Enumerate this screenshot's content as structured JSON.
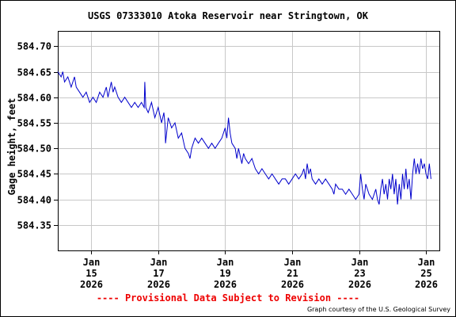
{
  "chart_data": {
    "type": "line",
    "title": "USGS 07333010 Atoka Reservoir near Stringtown, OK",
    "ylabel": "Gage height, feet",
    "xlabel": "",
    "ylim": [
      584.3,
      584.73
    ],
    "xlim": [
      -1.0,
      10.4
    ],
    "yticks": [
      "584.35",
      "584.40",
      "584.45",
      "584.50",
      "584.55",
      "584.60",
      "584.65",
      "584.70"
    ],
    "xticks": [
      {
        "pos": 0,
        "lines": [
          "Jan",
          "15",
          "2026"
        ]
      },
      {
        "pos": 2,
        "lines": [
          "Jan",
          "17",
          "2026"
        ]
      },
      {
        "pos": 4,
        "lines": [
          "Jan",
          "19",
          "2026"
        ]
      },
      {
        "pos": 6,
        "lines": [
          "Jan",
          "21",
          "2026"
        ]
      },
      {
        "pos": 8,
        "lines": [
          "Jan",
          "23",
          "2026"
        ]
      },
      {
        "pos": 10,
        "lines": [
          "Jan",
          "25",
          "2026"
        ]
      }
    ],
    "x_note": "x positions in days, 0 = Jan 15 2026",
    "grid": true,
    "series": [
      {
        "name": "",
        "color": "#0000cc",
        "points": [
          [
            -1.0,
            584.65
          ],
          [
            -0.9,
            584.64
          ],
          [
            -0.85,
            584.65
          ],
          [
            -0.8,
            584.63
          ],
          [
            -0.7,
            584.64
          ],
          [
            -0.6,
            584.62
          ],
          [
            -0.5,
            584.64
          ],
          [
            -0.45,
            584.62
          ],
          [
            -0.35,
            584.61
          ],
          [
            -0.25,
            584.6
          ],
          [
            -0.15,
            584.61
          ],
          [
            -0.05,
            584.59
          ],
          [
            0.05,
            584.6
          ],
          [
            0.15,
            584.59
          ],
          [
            0.25,
            584.61
          ],
          [
            0.35,
            584.6
          ],
          [
            0.45,
            584.62
          ],
          [
            0.5,
            584.6
          ],
          [
            0.6,
            584.63
          ],
          [
            0.65,
            584.61
          ],
          [
            0.7,
            584.62
          ],
          [
            0.8,
            584.6
          ],
          [
            0.9,
            584.59
          ],
          [
            1.0,
            584.6
          ],
          [
            1.1,
            584.59
          ],
          [
            1.2,
            584.58
          ],
          [
            1.3,
            584.59
          ],
          [
            1.4,
            584.58
          ],
          [
            1.5,
            584.59
          ],
          [
            1.58,
            584.58
          ],
          [
            1.6,
            584.63
          ],
          [
            1.63,
            584.58
          ],
          [
            1.7,
            584.57
          ],
          [
            1.8,
            584.59
          ],
          [
            1.9,
            584.56
          ],
          [
            2.0,
            584.58
          ],
          [
            2.1,
            584.55
          ],
          [
            2.17,
            584.57
          ],
          [
            2.2,
            584.55
          ],
          [
            2.22,
            584.51
          ],
          [
            2.3,
            584.56
          ],
          [
            2.4,
            584.54
          ],
          [
            2.5,
            584.55
          ],
          [
            2.6,
            584.52
          ],
          [
            2.7,
            584.53
          ],
          [
            2.8,
            584.5
          ],
          [
            2.9,
            584.49
          ],
          [
            2.95,
            584.48
          ],
          [
            3.0,
            584.5
          ],
          [
            3.05,
            584.51
          ],
          [
            3.1,
            584.52
          ],
          [
            3.2,
            584.51
          ],
          [
            3.3,
            584.52
          ],
          [
            3.4,
            584.51
          ],
          [
            3.5,
            584.5
          ],
          [
            3.6,
            584.51
          ],
          [
            3.7,
            584.5
          ],
          [
            3.8,
            584.51
          ],
          [
            3.9,
            584.52
          ],
          [
            4.0,
            584.54
          ],
          [
            4.05,
            584.52
          ],
          [
            4.1,
            584.56
          ],
          [
            4.15,
            584.53
          ],
          [
            4.2,
            584.51
          ],
          [
            4.3,
            584.5
          ],
          [
            4.35,
            584.48
          ],
          [
            4.4,
            584.5
          ],
          [
            4.5,
            584.47
          ],
          [
            4.55,
            584.49
          ],
          [
            4.6,
            584.48
          ],
          [
            4.7,
            584.47
          ],
          [
            4.8,
            584.48
          ],
          [
            4.9,
            584.46
          ],
          [
            5.0,
            584.45
          ],
          [
            5.1,
            584.46
          ],
          [
            5.2,
            584.45
          ],
          [
            5.3,
            584.44
          ],
          [
            5.4,
            584.45
          ],
          [
            5.5,
            584.44
          ],
          [
            5.6,
            584.43
          ],
          [
            5.7,
            584.44
          ],
          [
            5.8,
            584.44
          ],
          [
            5.9,
            584.43
          ],
          [
            6.0,
            584.44
          ],
          [
            6.1,
            584.45
          ],
          [
            6.2,
            584.44
          ],
          [
            6.3,
            584.45
          ],
          [
            6.35,
            584.46
          ],
          [
            6.4,
            584.44
          ],
          [
            6.45,
            584.47
          ],
          [
            6.5,
            584.45
          ],
          [
            6.55,
            584.46
          ],
          [
            6.6,
            584.44
          ],
          [
            6.7,
            584.43
          ],
          [
            6.8,
            584.44
          ],
          [
            6.9,
            584.43
          ],
          [
            7.0,
            584.44
          ],
          [
            7.1,
            584.43
          ],
          [
            7.2,
            584.42
          ],
          [
            7.25,
            584.41
          ],
          [
            7.3,
            584.43
          ],
          [
            7.4,
            584.42
          ],
          [
            7.5,
            584.42
          ],
          [
            7.6,
            584.41
          ],
          [
            7.7,
            584.42
          ],
          [
            7.8,
            584.41
          ],
          [
            7.9,
            584.4
          ],
          [
            8.0,
            584.41
          ],
          [
            8.05,
            584.45
          ],
          [
            8.1,
            584.42
          ],
          [
            8.15,
            584.4
          ],
          [
            8.2,
            584.43
          ],
          [
            8.3,
            584.41
          ],
          [
            8.4,
            584.4
          ],
          [
            8.5,
            584.42
          ],
          [
            8.55,
            584.4
          ],
          [
            8.6,
            584.39
          ],
          [
            8.65,
            584.42
          ],
          [
            8.7,
            584.44
          ],
          [
            8.75,
            584.41
          ],
          [
            8.8,
            584.43
          ],
          [
            8.85,
            584.4
          ],
          [
            8.9,
            584.44
          ],
          [
            8.95,
            584.42
          ],
          [
            9.0,
            584.45
          ],
          [
            9.05,
            584.41
          ],
          [
            9.1,
            584.44
          ],
          [
            9.15,
            584.39
          ],
          [
            9.2,
            584.43
          ],
          [
            9.25,
            584.4
          ],
          [
            9.3,
            584.45
          ],
          [
            9.35,
            584.42
          ],
          [
            9.4,
            584.46
          ],
          [
            9.45,
            584.42
          ],
          [
            9.5,
            584.44
          ],
          [
            9.55,
            584.4
          ],
          [
            9.6,
            584.45
          ],
          [
            9.65,
            584.48
          ],
          [
            9.7,
            584.45
          ],
          [
            9.75,
            584.47
          ],
          [
            9.8,
            584.45
          ],
          [
            9.85,
            584.48
          ],
          [
            9.9,
            584.46
          ],
          [
            9.95,
            584.47
          ],
          [
            10.0,
            584.45
          ],
          [
            10.05,
            584.44
          ],
          [
            10.1,
            584.47
          ],
          [
            10.15,
            584.44
          ]
        ]
      }
    ]
  },
  "disclaimer": "---- Provisional Data Subject to Revision ----",
  "credit": "Graph courtesy of the U.S. Geological Survey"
}
